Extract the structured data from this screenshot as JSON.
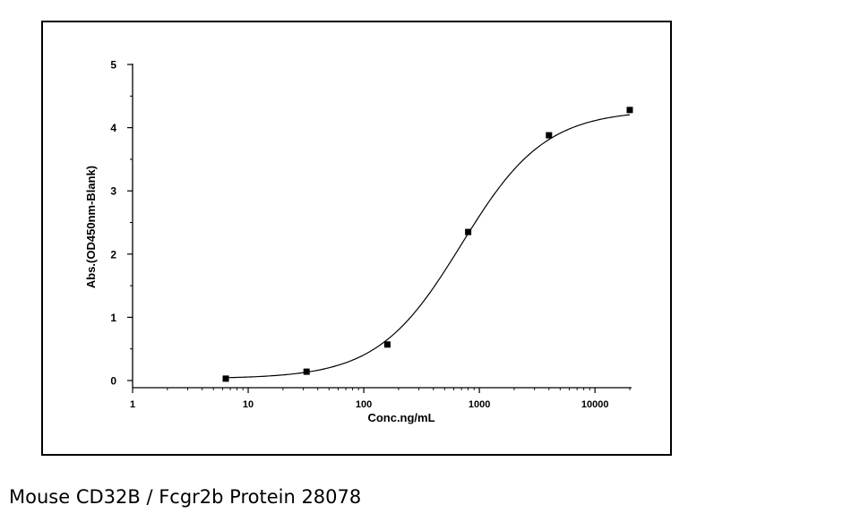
{
  "caption": "Mouse CD32B / Fcgr2b Protein 28078",
  "chart_data": {
    "type": "scatter",
    "title": "",
    "xlabel": "Conc.ng/mL",
    "ylabel": "Abs.(OD450nm-Blank)",
    "xscale": "log",
    "xlim": [
      1,
      20000
    ],
    "ylim": [
      0,
      5
    ],
    "xticks": [
      1,
      10,
      100,
      1000,
      10000
    ],
    "xtick_labels": [
      "1",
      "10",
      "100",
      "1000",
      "10000"
    ],
    "yticks": [
      0,
      1,
      2,
      3,
      4,
      5
    ],
    "ytick_labels": [
      "0",
      "1",
      "2",
      "3",
      "4",
      "5"
    ],
    "grid": false,
    "series": [
      {
        "x": [
          6.4,
          32,
          160,
          800,
          4000,
          20000
        ],
        "y": [
          0.03,
          0.14,
          0.57,
          2.35,
          3.88,
          4.28
        ]
      }
    ],
    "fit_curve": {
      "model": "4PL",
      "bottom": 0.03,
      "top": 4.28,
      "ec50": 700,
      "hill": 1.2
    },
    "colors": {
      "marker": "#000000",
      "curve": "#000000"
    }
  }
}
